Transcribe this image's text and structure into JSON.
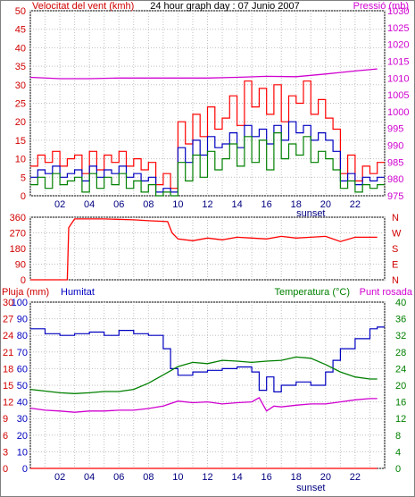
{
  "chart_data": [
    {
      "type": "line",
      "title": "24 hour graph day : 07 Junio 2007",
      "ylabel_left": "Velocitat del vent (kmh)",
      "ylabel_right": "Pressió (mb)",
      "ylim_left": [
        0,
        50
      ],
      "ylim_right": [
        975,
        1030
      ],
      "yticks_left": [
        "0",
        "5",
        "10",
        "15",
        "20",
        "25",
        "30",
        "35",
        "40",
        "45",
        "50"
      ],
      "yticks_right": [
        "975",
        "980",
        "985",
        "990",
        "995",
        "1000",
        "1005",
        "1010",
        "1015",
        "1020",
        "1025",
        "1030"
      ],
      "xlim": [
        0,
        24
      ],
      "xticks": [
        "02",
        "04",
        "06",
        "08",
        "10",
        "12",
        "14",
        "16",
        "18",
        "20",
        "22"
      ],
      "annotations": [
        "sunset"
      ],
      "series": [
        {
          "axis": "right",
          "color": "#d000d0",
          "x": [
            0,
            2,
            4,
            6,
            8,
            10,
            12,
            14,
            16,
            18,
            20,
            22,
            23.5
          ],
          "values": [
            1010.2,
            1009.8,
            1009.8,
            1010,
            1010,
            1010,
            1010,
            1010.2,
            1010.5,
            1010.4,
            1011.2,
            1012.1,
            1012.7
          ]
        },
        {
          "axis": "left",
          "color": "#ff0000",
          "x": [
            0,
            0.5,
            1,
            1.5,
            2,
            2.5,
            3,
            3.5,
            4,
            4.5,
            5,
            5.5,
            6,
            6.5,
            7,
            7.5,
            8,
            8.5,
            9,
            9.5,
            10,
            10.5,
            11,
            11.5,
            12,
            12.5,
            13,
            13.5,
            14,
            14.5,
            15,
            15.5,
            16,
            16.5,
            17,
            17.5,
            18,
            18.5,
            19,
            19.5,
            20,
            20.5,
            21,
            21.5,
            22,
            22.5,
            23,
            23.5
          ],
          "values": [
            8,
            11,
            9,
            12,
            8,
            10,
            11,
            6,
            12,
            7,
            11,
            9,
            12,
            8,
            10,
            7,
            9,
            3,
            6,
            2,
            20,
            14,
            22,
            16,
            24,
            18,
            21,
            27,
            19,
            31,
            24,
            29,
            22,
            30,
            20,
            27,
            25,
            31,
            22,
            26,
            21,
            18,
            6,
            11,
            4,
            8,
            6,
            9
          ]
        },
        {
          "axis": "left",
          "color": "#0000c0",
          "x": [
            0,
            0.5,
            1,
            1.5,
            2,
            2.5,
            3,
            3.5,
            4,
            4.5,
            5,
            5.5,
            6,
            6.5,
            7,
            7.5,
            8,
            8.5,
            9,
            9.5,
            10,
            10.5,
            11,
            11.5,
            12,
            12.5,
            13,
            13.5,
            14,
            14.5,
            15,
            15.5,
            16,
            16.5,
            17,
            17.5,
            18,
            18.5,
            19,
            19.5,
            20,
            20.5,
            21,
            21.5,
            22,
            22.5,
            23,
            23.5
          ],
          "values": [
            5,
            7,
            6,
            8,
            5,
            6,
            7,
            4,
            8,
            5,
            7,
            6,
            8,
            5,
            6,
            4,
            5,
            1,
            2,
            1,
            13,
            9,
            15,
            11,
            16,
            13,
            14,
            17,
            13,
            19,
            16,
            18,
            14,
            19,
            15,
            20,
            17,
            19,
            15,
            17,
            15,
            12,
            4,
            6,
            3,
            5,
            4,
            5
          ]
        },
        {
          "axis": "left",
          "color": "#008000",
          "x": [
            0,
            0.5,
            1,
            1.5,
            2,
            2.5,
            3,
            3.5,
            4,
            4.5,
            5,
            5.5,
            6,
            6.5,
            7,
            7.5,
            8,
            8.5,
            9,
            9.5,
            10,
            10.5,
            11,
            11.5,
            12,
            12.5,
            13,
            13.5,
            14,
            14.5,
            15,
            15.5,
            16,
            16.5,
            17,
            17.5,
            18,
            18.5,
            19,
            19.5,
            20,
            20.5,
            21,
            21.5,
            22,
            22.5,
            23,
            23.5
          ],
          "values": [
            3,
            5,
            2,
            6,
            3,
            4,
            5,
            1,
            6,
            2,
            5,
            3,
            6,
            2,
            4,
            1,
            3,
            0,
            1,
            0,
            9,
            4,
            11,
            5,
            12,
            7,
            10,
            14,
            8,
            16,
            9,
            15,
            7,
            17,
            10,
            14,
            11,
            16,
            9,
            12,
            10,
            7,
            2,
            4,
            1,
            3,
            2,
            3
          ]
        }
      ]
    },
    {
      "type": "line",
      "ylim": [
        0,
        360
      ],
      "yticks": [
        "0",
        "90",
        "180",
        "270",
        "360"
      ],
      "yticks_right": [
        "N",
        "E",
        "S",
        "W",
        "N"
      ],
      "series": [
        {
          "color": "#ff0000",
          "x": [
            0,
            2.5,
            2.6,
            3,
            5,
            7,
            8,
            9.3,
            9.6,
            10,
            11,
            12,
            13,
            14,
            15,
            16,
            17,
            18,
            19,
            20,
            21,
            22,
            23,
            23.5
          ],
          "values": [
            0,
            0,
            300,
            350,
            350,
            345,
            340,
            335,
            270,
            235,
            225,
            240,
            230,
            245,
            240,
            235,
            250,
            240,
            245,
            250,
            220,
            245,
            245,
            245
          ]
        }
      ]
    },
    {
      "type": "line",
      "ylabel_left": "Pluja (mm)",
      "ylabel_left2": "Humitat",
      "ylabel_right": "Temperatura (°C)",
      "ylabel_right2": "Punt rosada",
      "yticks_pluja": [
        "0",
        "3",
        "6",
        "9",
        "12",
        "15",
        "18",
        "21",
        "24",
        "27",
        "30"
      ],
      "yticks_humitat": [
        "0",
        "10",
        "20",
        "30",
        "40",
        "50",
        "60",
        "70",
        "80",
        "90",
        "100"
      ],
      "yticks_temp": [
        "0",
        "4",
        "8",
        "12",
        "16",
        "20",
        "24",
        "28",
        "32",
        "36",
        "40"
      ],
      "xticks": [
        "02",
        "04",
        "06",
        "08",
        "10",
        "12",
        "14",
        "16",
        "18",
        "20",
        "22"
      ],
      "annotations": [
        "sunset"
      ],
      "series": [
        {
          "name": "Pluja (mm)",
          "color": "#ff0000",
          "x": [
            0,
            23.5
          ],
          "values": [
            0,
            0
          ]
        },
        {
          "name": "Humitat",
          "color": "#0000c0",
          "x": [
            0,
            1,
            2,
            3,
            4,
            5,
            6,
            7,
            8,
            9,
            9.5,
            10,
            11,
            12,
            13,
            14,
            15,
            15.5,
            16,
            16.5,
            17,
            18,
            19,
            20,
            20.5,
            21,
            22,
            23,
            23.5
          ],
          "values": [
            84,
            81,
            80,
            81,
            82,
            80,
            83,
            81,
            80,
            72,
            60,
            56,
            58,
            59,
            60,
            61,
            58,
            47,
            55,
            46,
            50,
            52,
            50,
            58,
            65,
            72,
            78,
            84,
            85
          ]
        },
        {
          "name": "Temperatura (°C)",
          "color": "#008000",
          "x": [
            0,
            1,
            2,
            3,
            4,
            5,
            6,
            7,
            8,
            9,
            10,
            11,
            12,
            13,
            14,
            15,
            16,
            17,
            18,
            19,
            20,
            21,
            22,
            23,
            23.5
          ],
          "values": [
            19,
            18.6,
            18.2,
            18,
            18.2,
            18.5,
            18.5,
            19,
            20.5,
            22.5,
            24.5,
            25.5,
            25.2,
            26,
            25.8,
            25.5,
            25.8,
            26,
            26.8,
            26.5,
            25,
            23.2,
            22,
            21.5,
            21.5
          ]
        },
        {
          "name": "Punt rosada",
          "color": "#d000d0",
          "x": [
            0,
            1,
            2,
            3,
            4,
            5,
            6,
            7,
            8,
            9,
            10,
            11,
            12,
            13,
            14,
            15,
            15.5,
            16,
            16.5,
            17,
            18,
            19,
            20,
            21,
            22,
            23,
            23.5
          ],
          "values": [
            14.5,
            14,
            13.8,
            13.5,
            13.8,
            13.8,
            14,
            14,
            14.4,
            15,
            16.2,
            15.8,
            16,
            15.5,
            15.8,
            16,
            17,
            13.8,
            15,
            14.8,
            15.2,
            15.5,
            15.5,
            16,
            16.5,
            16.8,
            16.8
          ]
        }
      ]
    }
  ]
}
